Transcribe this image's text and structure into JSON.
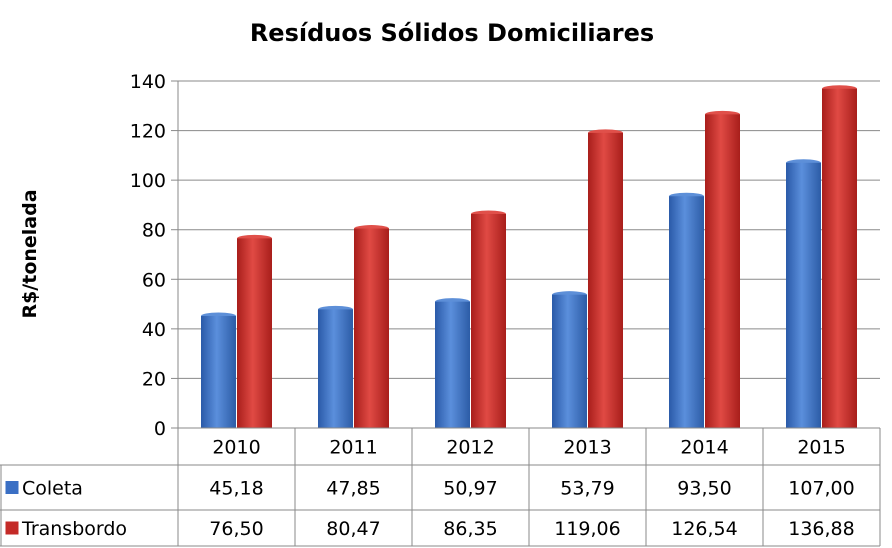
{
  "chart_data": {
    "type": "bar",
    "title": "Resíduos Sólidos Domiciliares",
    "xlabel": "",
    "ylabel": "R$/tonelada",
    "ylim": [
      0,
      140
    ],
    "yticks": [
      "0",
      "20",
      "40",
      "60",
      "80",
      "100",
      "120",
      "140"
    ],
    "grid": true,
    "legend": "data-table",
    "categories": [
      "2010",
      "2011",
      "2012",
      "2013",
      "2014",
      "2015"
    ],
    "series": [
      {
        "name": "Coleta",
        "color": "#3a6fc4",
        "values": [
          45.18,
          47.85,
          50.97,
          53.79,
          93.5,
          107.0
        ],
        "labels": [
          "45,18",
          "47,85",
          "50,97",
          "53,79",
          "93,50",
          "107,00"
        ]
      },
      {
        "name": "Transbordo",
        "color": "#c42a27",
        "values": [
          76.5,
          80.47,
          86.35,
          119.06,
          126.54,
          136.88
        ],
        "labels": [
          "76,50",
          "80,47",
          "86,35",
          "119,06",
          "126,54",
          "136,88"
        ]
      }
    ]
  }
}
